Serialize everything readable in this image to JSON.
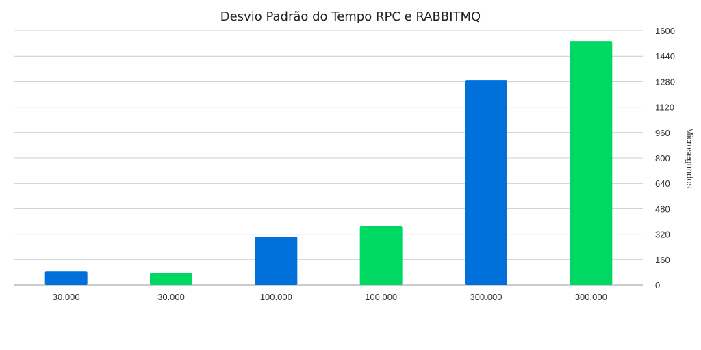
{
  "chart_data": {
    "type": "bar",
    "title": "Desvio Padrão do Tempo RPC e RABBITMQ",
    "ylabel": "Microsegundos",
    "y_axis_side": "right",
    "ylim": [
      0,
      1600
    ],
    "yticks": [
      0,
      160,
      320,
      480,
      640,
      800,
      960,
      1120,
      1280,
      1440,
      1600
    ],
    "grid": true,
    "legend": "none",
    "categories": [
      "30.000",
      "30.000",
      "100.000",
      "100.000",
      "300.000",
      "300.000"
    ],
    "values": [
      85,
      75,
      305,
      370,
      1290,
      1535
    ],
    "bar_colors": [
      "#0070DB",
      "#00D864",
      "#0070DB",
      "#00D864",
      "#0070DB",
      "#00D864"
    ]
  }
}
